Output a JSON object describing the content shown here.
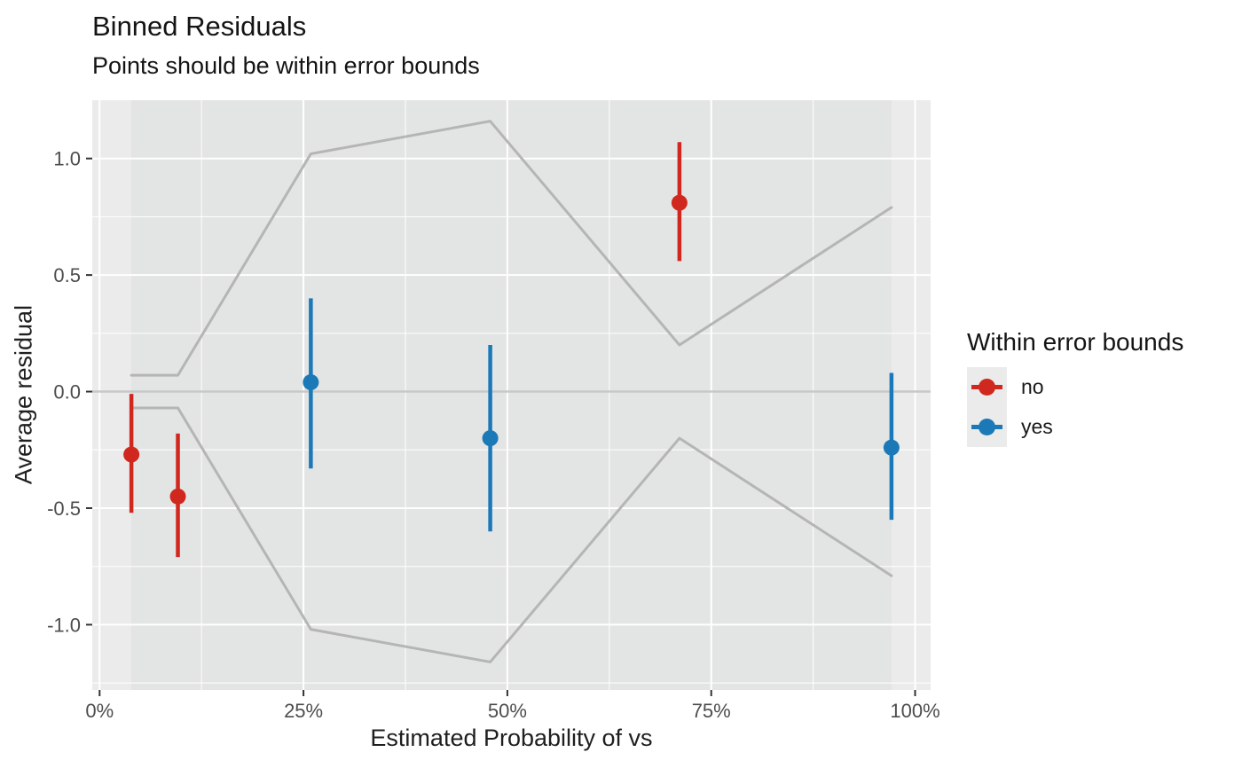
{
  "title": "Binned Residuals",
  "subtitle": "Points should be within error bounds",
  "chart_data": {
    "type": "scatter",
    "subtype": "pointrange-binned-residuals",
    "title": "Binned Residuals",
    "subtitle": "Points should be within error bounds",
    "xlabel": "Estimated Probability of vs",
    "ylabel": "Average residual",
    "x_unit": "percent",
    "x_range": [
      -0.9,
      101.9
    ],
    "y_range": [
      -1.28,
      1.25
    ],
    "x_ticks": {
      "values": [
        0,
        25,
        50,
        75,
        100
      ],
      "labels": [
        "0%",
        "25%",
        "50%",
        "75%",
        "100%"
      ]
    },
    "y_ticks": {
      "values": [
        1.0,
        0.5,
        0.0,
        -0.5,
        -1.0
      ],
      "labels": [
        "1.0",
        "0.5",
        "0.0",
        "-0.5",
        "-1.0"
      ]
    },
    "x_minor": [
      12.5,
      37.5,
      62.5,
      87.5
    ],
    "y_minor": [
      0.75,
      0.25,
      -0.25,
      -0.75,
      -1.25
    ],
    "zero_line": 0,
    "grid": true,
    "legend_position": "right",
    "groups": {
      "no": "#D0281E",
      "yes": "#1B79B7"
    },
    "bins": [
      {
        "x": 3.9,
        "residual": -0.27,
        "ci_low": -0.52,
        "ci_high": -0.01,
        "error_bound": 0.07,
        "within": "no"
      },
      {
        "x": 9.6,
        "residual": -0.45,
        "ci_low": -0.71,
        "ci_high": -0.18,
        "error_bound": 0.07,
        "within": "no"
      },
      {
        "x": 25.9,
        "residual": 0.04,
        "ci_low": -0.33,
        "ci_high": 0.4,
        "error_bound": 1.02,
        "within": "yes"
      },
      {
        "x": 47.9,
        "residual": -0.2,
        "ci_low": -0.6,
        "ci_high": 0.2,
        "error_bound": 1.16,
        "within": "yes"
      },
      {
        "x": 71.1,
        "residual": 0.81,
        "ci_low": 0.56,
        "ci_high": 1.07,
        "error_bound": 0.2,
        "within": "no"
      },
      {
        "x": 97.1,
        "residual": -0.24,
        "ci_low": -0.55,
        "ci_high": 0.08,
        "error_bound": 0.79,
        "within": "yes"
      }
    ],
    "colors": {
      "panel_background": "#EBEBEB",
      "bin_band": "#E3E4E4",
      "gridline": "#FFFFFF",
      "zero_line": "#C8C8C8",
      "error_bound_line": "#B5B5B5",
      "tick": "#333333",
      "tick_label": "#4D4D4D"
    }
  },
  "legend": {
    "title": "Within error bounds",
    "items": [
      {
        "label": "no",
        "color": "#D0281E"
      },
      {
        "label": "yes",
        "color": "#1B79B7"
      }
    ]
  }
}
